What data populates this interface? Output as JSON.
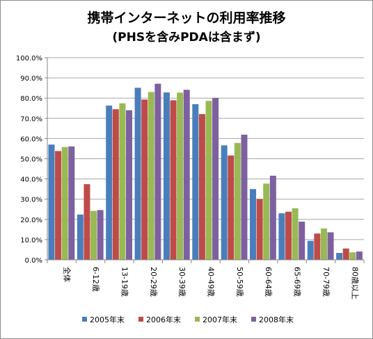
{
  "chart_data": {
    "type": "bar",
    "title": "携帯インターネットの利用率推移",
    "subtitle": "(PHSを含みPDAは含まず)",
    "categories": [
      "全体",
      "6-12歳",
      "13-19歳",
      "20-29歳",
      "30-39歳",
      "40-49歳",
      "50-59歳",
      "60-64歳",
      "65-69歳",
      "70-79歳",
      "80歳以上"
    ],
    "series": [
      {
        "name": "2005年末",
        "color": "#4a7ebb",
        "values": [
          57.0,
          22.4,
          76.3,
          85.1,
          82.8,
          77.0,
          56.6,
          35.0,
          23.0,
          9.4,
          3.4
        ]
      },
      {
        "name": "2006年末",
        "color": "#be4b48",
        "values": [
          53.8,
          37.4,
          74.5,
          79.3,
          78.9,
          72.1,
          51.6,
          30.1,
          23.8,
          13.0,
          5.6
        ]
      },
      {
        "name": "2007年末",
        "color": "#98b954",
        "values": [
          55.8,
          24.2,
          77.4,
          83.0,
          82.7,
          78.6,
          57.8,
          37.7,
          25.5,
          15.5,
          3.7
        ]
      },
      {
        "name": "2008年末",
        "color": "#7d60a0",
        "values": [
          56.1,
          24.6,
          74.0,
          87.1,
          84.1,
          80.1,
          61.9,
          41.6,
          18.9,
          13.6,
          4.1
        ]
      }
    ],
    "ylim": [
      0,
      100
    ],
    "yticks": [
      "0.0%",
      "10.0%",
      "20.0%",
      "30.0%",
      "40.0%",
      "50.0%",
      "60.0%",
      "70.0%",
      "80.0%",
      "90.0%",
      "100.0%"
    ],
    "grid": true,
    "legend_position": "bottom"
  }
}
